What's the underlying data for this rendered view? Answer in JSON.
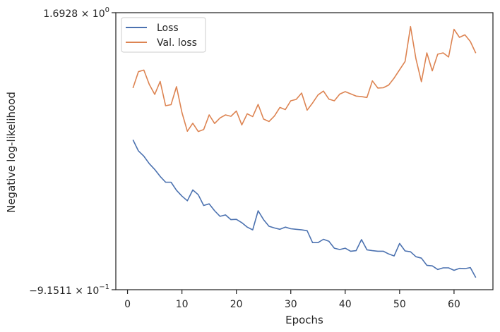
{
  "chart_data": {
    "type": "line",
    "xlabel": "Epochs",
    "ylabel": "Negative log-likelihood",
    "xlim": [
      -2.15,
      67.15
    ],
    "xticks": [
      0,
      10,
      20,
      30,
      40,
      50,
      60
    ],
    "ylim": [
      0,
      100
    ],
    "yticks": [
      {
        "value": 100,
        "label": "1.6928 × 10^0"
      },
      {
        "value": 0,
        "label": "−9.1511 × 10^−1"
      }
    ],
    "grid": false,
    "legend_position": "top-left",
    "series": [
      {
        "name": "Loss",
        "color": "#4c72b0",
        "x": [
          1,
          2,
          3,
          4,
          5,
          6,
          7,
          8,
          9,
          10,
          11,
          12,
          13,
          14,
          15,
          16,
          17,
          18,
          19,
          20,
          21,
          22,
          23,
          24,
          25,
          26,
          27,
          28,
          29,
          30,
          31,
          32,
          33,
          34,
          35,
          36,
          37,
          38,
          39,
          40,
          41,
          42,
          43,
          44,
          45,
          46,
          47,
          48,
          49,
          50,
          51,
          52,
          53,
          54,
          55,
          56,
          57,
          58,
          59,
          60,
          61,
          62,
          63,
          64
        ],
        "values": [
          54.1,
          50.1,
          48.2,
          45.5,
          43.4,
          40.9,
          38.8,
          38.8,
          35.9,
          33.8,
          32.1,
          36.0,
          34.3,
          30.4,
          31.0,
          28.5,
          26.5,
          27.0,
          25.3,
          25.4,
          24.2,
          22.6,
          21.6,
          28.5,
          25.3,
          22.9,
          22.3,
          21.8,
          22.6,
          22.0,
          21.8,
          21.6,
          21.3,
          17.0,
          17.0,
          18.2,
          17.5,
          15.0,
          14.5,
          15.0,
          13.9,
          14.1,
          18.1,
          14.4,
          14.1,
          13.9,
          13.9,
          12.9,
          12.2,
          16.7,
          14.0,
          13.7,
          11.9,
          11.4,
          8.8,
          8.6,
          7.3,
          7.9,
          7.9,
          7.0,
          7.7,
          7.6,
          8.0,
          4.4
        ]
      },
      {
        "name": "Val. loss",
        "color": "#dd8452",
        "x": [
          1,
          2,
          3,
          4,
          5,
          6,
          7,
          8,
          9,
          10,
          11,
          12,
          13,
          14,
          15,
          16,
          17,
          18,
          19,
          20,
          21,
          22,
          23,
          24,
          25,
          26,
          27,
          28,
          29,
          30,
          31,
          32,
          33,
          34,
          35,
          36,
          37,
          38,
          39,
          40,
          41,
          42,
          43,
          44,
          45,
          46,
          47,
          48,
          49,
          50,
          51,
          52,
          53,
          54,
          55,
          56,
          57,
          58,
          59,
          60,
          61,
          62,
          63,
          64
        ],
        "values": [
          72.8,
          78.7,
          79.3,
          74.1,
          70.5,
          75.2,
          66.4,
          66.8,
          73.3,
          64.0,
          57.2,
          60.1,
          57.1,
          57.8,
          63.1,
          60.0,
          62.0,
          63.1,
          62.6,
          64.5,
          59.5,
          63.5,
          62.5,
          66.9,
          61.6,
          60.7,
          62.7,
          65.8,
          65.0,
          68.2,
          68.7,
          71.0,
          64.8,
          67.4,
          70.3,
          71.7,
          68.8,
          68.2,
          70.6,
          71.5,
          70.7,
          69.9,
          69.7,
          69.4,
          75.4,
          72.8,
          72.9,
          73.9,
          76.4,
          79.4,
          82.4,
          95.0,
          83.3,
          75.1,
          85.5,
          79.0,
          85.0,
          85.5,
          84.0,
          94.0,
          91.1,
          92.0,
          89.6,
          85.4
        ]
      }
    ]
  }
}
